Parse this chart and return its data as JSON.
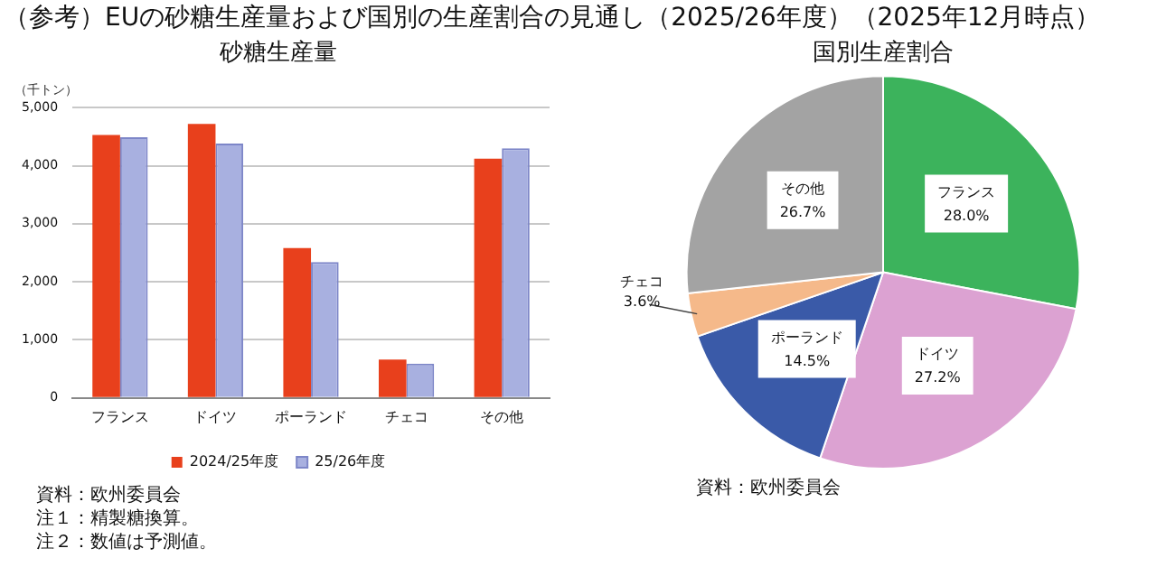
{
  "chart_data": [
    {
      "type": "bar",
      "title": "砂糖生産量",
      "ylabel": "（千トン）",
      "categories": [
        "フランス",
        "ドイツ",
        "ポーランド",
        "チェコ",
        "その他"
      ],
      "series": [
        {
          "name": "2024/25年度",
          "color": "#e8401c",
          "values": [
            4530,
            4720,
            2580,
            660,
            4120
          ]
        },
        {
          "name": "25/26年度",
          "color": "#a8b0e0",
          "values": [
            4490,
            4380,
            2340,
            590,
            4300
          ]
        }
      ],
      "ylim": [
        0,
        5000
      ],
      "yticks": [
        {
          "value": 0,
          "label": "0"
        },
        {
          "value": 1000,
          "label": "1,000"
        },
        {
          "value": 2000,
          "label": "2,000"
        },
        {
          "value": 3000,
          "label": "3,000"
        },
        {
          "value": 4000,
          "label": "4,000"
        },
        {
          "value": 5000,
          "label": "5,000"
        }
      ],
      "grid": "y",
      "legend": "bottom",
      "annotations": [
        "（参考）EUの砂糖生産量および国別の生産割合の見通し（2025/26年度）（2025年12月時点）",
        "資料：欧州委員会",
        "注１：精製糖換算。",
        "注２：数値は予測値。"
      ]
    },
    {
      "type": "pie",
      "title": "国別生産割合",
      "categories": [
        "フランス",
        "ドイツ",
        "ポーランド",
        "チェコ",
        "その他"
      ],
      "values": [
        28.0,
        27.2,
        14.5,
        3.6,
        26.7
      ],
      "colors": [
        "#3cb35c",
        "#dca2d2",
        "#3a5aa8",
        "#f5b98a",
        "#a3a3a3"
      ],
      "value_labels": [
        "28.0%",
        "27.2%",
        "14.5%",
        "3.6%",
        "26.7%"
      ],
      "legend": false,
      "annotations": [
        "資料：欧州委員会"
      ]
    }
  ]
}
